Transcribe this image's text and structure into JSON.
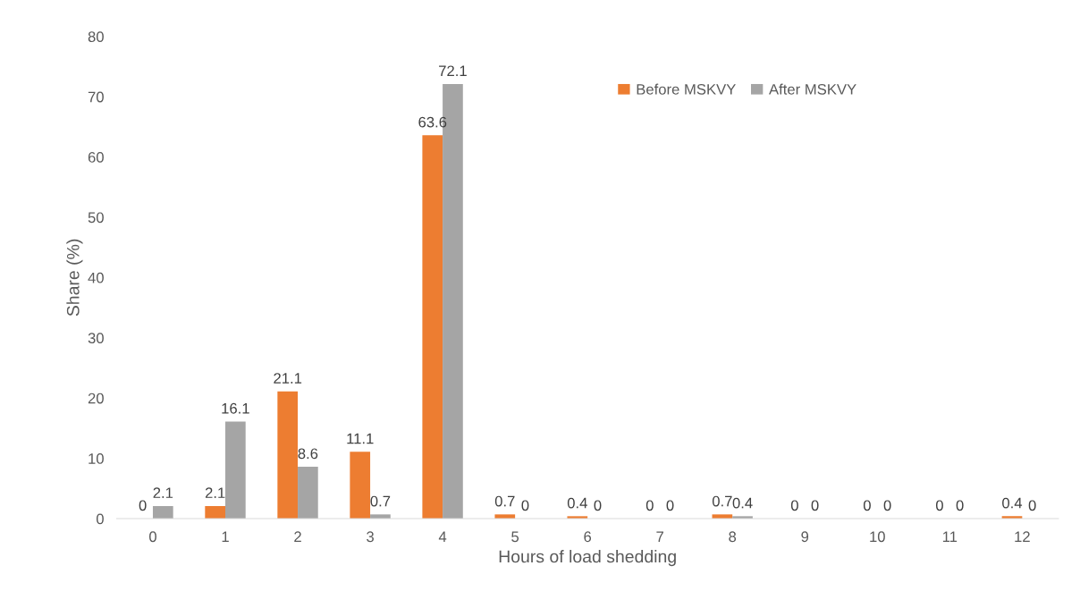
{
  "chart_data": {
    "type": "bar",
    "xlabel": "Hours of load shedding",
    "ylabel": "Share (%)",
    "categories": [
      "0",
      "1",
      "2",
      "3",
      "4",
      "5",
      "6",
      "7",
      "8",
      "9",
      "10",
      "11",
      "12"
    ],
    "series": [
      {
        "name": "Before MSKVY",
        "color": "#ed7d31",
        "values": [
          0,
          2.1,
          21.1,
          11.1,
          63.6,
          0.7,
          0.4,
          0,
          0.7,
          0,
          0,
          0,
          0.4
        ]
      },
      {
        "name": "After MSKVY",
        "color": "#a5a5a5",
        "values": [
          2.1,
          16.1,
          8.6,
          0.7,
          72.1,
          0,
          0,
          0,
          0.4,
          0,
          0,
          0,
          0
        ]
      }
    ],
    "ylim": [
      0,
      80
    ],
    "yticks": [
      0,
      10,
      20,
      30,
      40,
      50,
      60,
      70,
      80
    ],
    "data_labels": true,
    "legend": "top right",
    "grid": false
  }
}
